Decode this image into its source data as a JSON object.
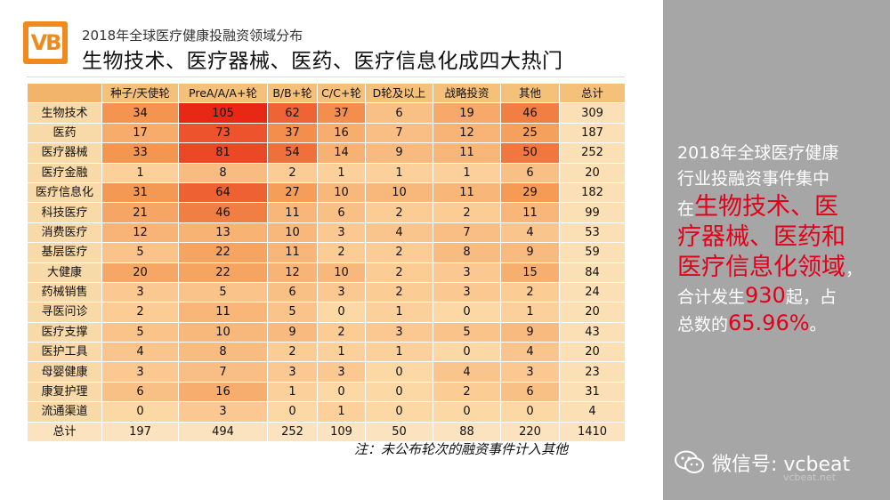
{
  "header": {
    "logo_text": "VB",
    "subtitle": "2018年全球医疗健康投融资领域分布",
    "title": "生物技术、医疗器械、医药、医疗信息化成四大热门"
  },
  "chart_data": {
    "type": "heatmap",
    "columns": [
      "种子/天使轮",
      "PreA/A/A+轮",
      "B/B+轮",
      "C/C+轮",
      "D轮及以上",
      "战略投资",
      "其他",
      "总计"
    ],
    "rows": [
      {
        "label": "生物技术",
        "values": [
          34,
          105,
          62,
          37,
          6,
          19,
          46,
          309
        ]
      },
      {
        "label": "医药",
        "values": [
          17,
          73,
          37,
          16,
          7,
          12,
          25,
          187
        ]
      },
      {
        "label": "医疗器械",
        "values": [
          33,
          81,
          54,
          14,
          9,
          11,
          50,
          252
        ]
      },
      {
        "label": "医疗金融",
        "values": [
          1,
          8,
          2,
          1,
          1,
          1,
          6,
          20
        ]
      },
      {
        "label": "医疗信息化",
        "values": [
          31,
          64,
          27,
          10,
          10,
          11,
          29,
          182
        ]
      },
      {
        "label": "科技医疗",
        "values": [
          21,
          46,
          11,
          6,
          2,
          2,
          11,
          99
        ]
      },
      {
        "label": "消费医疗",
        "values": [
          12,
          13,
          10,
          3,
          4,
          7,
          4,
          53
        ]
      },
      {
        "label": "基层医疗",
        "values": [
          5,
          22,
          11,
          2,
          2,
          8,
          9,
          59
        ]
      },
      {
        "label": "大健康",
        "values": [
          20,
          22,
          12,
          10,
          2,
          3,
          15,
          84
        ]
      },
      {
        "label": "药械销售",
        "values": [
          3,
          5,
          6,
          3,
          2,
          3,
          2,
          24
        ]
      },
      {
        "label": "寻医问诊",
        "values": [
          2,
          11,
          5,
          0,
          1,
          0,
          1,
          20
        ]
      },
      {
        "label": "医疗支撑",
        "values": [
          5,
          10,
          9,
          2,
          3,
          5,
          9,
          43
        ]
      },
      {
        "label": "医护工具",
        "values": [
          4,
          8,
          2,
          1,
          1,
          0,
          4,
          20
        ]
      },
      {
        "label": "母婴健康",
        "values": [
          3,
          7,
          3,
          3,
          0,
          4,
          3,
          23
        ]
      },
      {
        "label": "康复护理",
        "values": [
          6,
          16,
          1,
          0,
          0,
          2,
          6,
          31
        ]
      },
      {
        "label": "流通渠道",
        "values": [
          0,
          3,
          0,
          1,
          0,
          0,
          0,
          4
        ]
      }
    ],
    "total_row": {
      "label": "总计",
      "values": [
        197,
        494,
        252,
        109,
        50,
        88,
        220,
        1410
      ]
    }
  },
  "note": "注：未公布轮次的融资事件计入其他",
  "side_panel": {
    "line1": "2018年全球医疗健康",
    "line2": "行业投融资事件集中",
    "line3_prefix": "在",
    "highlight1": "生物技术、医",
    "highlight2": "疗器械、医药和",
    "highlight3": "医疗信息化领域",
    "line_comma": "，",
    "line5_prefix": "合计发生",
    "count": "930",
    "line5_suffix": "起，占",
    "line6_prefix": "总数的",
    "percent": "65.96%",
    "line6_suffix": "。"
  },
  "footer": {
    "wechat_label": "微信号: vcbeat",
    "watermark": "vcbeat.net"
  },
  "colors": {
    "side_bg": "#a6a6a6",
    "highlight": "#e3001b",
    "logo": "#f08a1c"
  }
}
